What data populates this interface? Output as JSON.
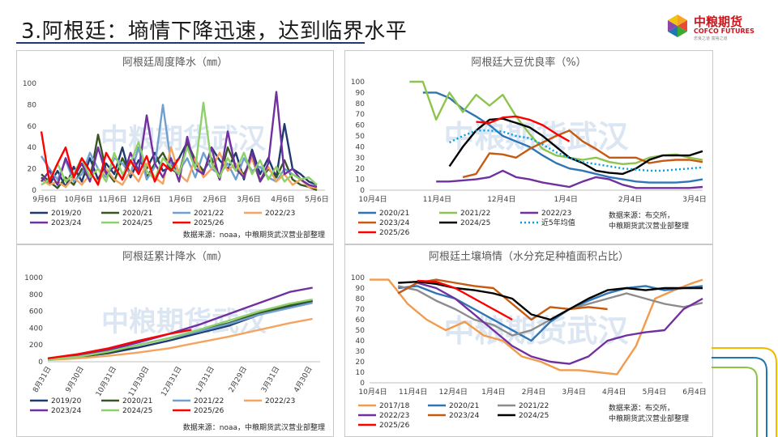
{
  "page": {
    "title": "3.阿根廷：墒情下降迅速，达到临界水平",
    "logo": {
      "cn": "中粮期货",
      "en": "COFCO FUTURES",
      "tagline": "忠良之道 富裕之道"
    },
    "watermark": "中粮期货武汉"
  },
  "colors": {
    "y2017": "#f39a4b",
    "y2019": "#1f3a6e",
    "y2020": "#2e75b6",
    "y2020b": "#375623",
    "y2021": "#8dc44e",
    "y2021b": "#70a0d0",
    "y2022": "#f4a460",
    "y2022b": "#7030a0",
    "y2023": "#7030a0",
    "y2023b": "#c55a11",
    "y2024": "#8ed16b",
    "y2024b": "#000000",
    "y2025": "#ff0000",
    "avg": "#00a0e0"
  },
  "chart_data": [
    {
      "id": "weekly",
      "type": "line",
      "title": "阿根廷周度降水（㎜）",
      "source": "数据来源：noaa，中粮期货武汉营业部整理",
      "ylim": [
        0,
        100
      ],
      "yticks": [
        "0",
        "20",
        "40",
        "60",
        "80",
        "100"
      ],
      "xticks": [
        "9月6日",
        "10月6日",
        "11月6日",
        "12月6日",
        "1月6日",
        "2月6日",
        "3月6日",
        "4月6日",
        "5月6日"
      ],
      "x_range": [
        0,
        35
      ],
      "series": [
        {
          "name": "2019/20",
          "color": "#1f3a6e",
          "values": [
            12,
            5,
            18,
            3,
            22,
            8,
            30,
            10,
            25,
            15,
            40,
            12,
            28,
            20,
            35,
            18,
            22,
            30,
            45,
            25,
            15,
            40,
            28,
            20,
            35,
            10,
            38,
            15,
            30,
            12,
            62,
            20,
            15,
            8,
            5
          ]
        },
        {
          "name": "2020/21",
          "color": "#375623",
          "values": [
            15,
            8,
            2,
            12,
            5,
            20,
            10,
            52,
            18,
            8,
            30,
            15,
            40,
            12,
            25,
            35,
            20,
            15,
            45,
            28,
            18,
            30,
            10,
            40,
            22,
            15,
            30,
            8,
            20,
            12,
            28,
            10,
            5,
            3,
            0
          ]
        },
        {
          "name": "2021/22",
          "color": "#70a0d0",
          "values": [
            32,
            20,
            10,
            28,
            8,
            15,
            35,
            20,
            12,
            30,
            25,
            15,
            40,
            10,
            22,
            80,
            25,
            18,
            30,
            12,
            35,
            20,
            15,
            25,
            10,
            30,
            18,
            22,
            12,
            8,
            20,
            15,
            10,
            5,
            3
          ]
        },
        {
          "name": "2022/23",
          "color": "#f4a460",
          "values": [
            10,
            5,
            8,
            3,
            12,
            5,
            15,
            8,
            20,
            10,
            5,
            18,
            8,
            25,
            12,
            6,
            40,
            15,
            8,
            30,
            12,
            20,
            35,
            18,
            25,
            12,
            30,
            10,
            22,
            8,
            15,
            5,
            10,
            3,
            2
          ]
        },
        {
          "name": "2023/24",
          "color": "#7030a0",
          "values": [
            8,
            18,
            5,
            30,
            12,
            25,
            8,
            40,
            15,
            22,
            10,
            35,
            18,
            70,
            25,
            12,
            30,
            8,
            50,
            20,
            15,
            40,
            10,
            55,
            20,
            12,
            35,
            8,
            25,
            92,
            15,
            20,
            10,
            5,
            3
          ]
        },
        {
          "name": "2024/25",
          "color": "#8ed16b",
          "values": [
            5,
            10,
            25,
            8,
            15,
            30,
            12,
            20,
            8,
            35,
            15,
            25,
            45,
            18,
            10,
            30,
            22,
            15,
            40,
            20,
            82,
            25,
            12,
            30,
            18,
            35,
            15,
            28,
            10,
            22,
            8,
            15,
            10,
            12,
            5
          ]
        },
        {
          "name": "2025/26",
          "color": "#ff0000",
          "values": [
            55,
            8,
            25,
            40,
            12,
            30,
            18,
            5,
            35,
            22,
            10,
            28,
            15,
            32,
            8,
            25,
            18,
            30
          ]
        }
      ]
    },
    {
      "id": "soy-gte",
      "type": "line",
      "title": "阿根廷大豆优良率（%）",
      "source": "数据来源：布交所，中粮期货武汉营业部整理",
      "ylim": [
        0,
        100
      ],
      "yticks": [
        "0",
        "10",
        "20",
        "30",
        "40",
        "50",
        "60",
        "70",
        "80",
        "90",
        "100"
      ],
      "xticks": [
        "10月4日",
        "11月4日",
        "12月4日",
        "1月4日",
        "2月4日",
        "3月4日"
      ],
      "x_range": [
        0,
        25
      ],
      "series": [
        {
          "name": "2020/21",
          "color": "#2e75b6",
          "x": [
            4,
            5,
            6,
            7,
            8,
            9,
            10,
            11,
            12,
            13,
            14,
            15,
            16,
            17,
            18,
            19,
            20,
            21,
            22,
            23,
            24,
            25
          ],
          "values": [
            90,
            90,
            85,
            75,
            68,
            60,
            50,
            45,
            40,
            32,
            25,
            20,
            18,
            15,
            12,
            10,
            8,
            7,
            7,
            7,
            8,
            10
          ]
        },
        {
          "name": "2021/22",
          "color": "#8dc44e",
          "x": [
            3,
            4,
            5,
            6,
            7,
            8,
            9,
            10,
            11,
            12,
            13,
            14,
            15,
            16,
            17,
            18,
            19,
            20,
            21,
            22,
            23,
            24,
            25
          ],
          "values": [
            100,
            100,
            65,
            90,
            72,
            88,
            78,
            88,
            68,
            52,
            38,
            32,
            30,
            28,
            30,
            26,
            24,
            25,
            30,
            32,
            33,
            30,
            28
          ]
        },
        {
          "name": "2022/23",
          "color": "#7030a0",
          "x": [
            5,
            6,
            7,
            8,
            9,
            10,
            11,
            12,
            13,
            14,
            15,
            16,
            17,
            18,
            19,
            20,
            21,
            22,
            23,
            24,
            25
          ],
          "values": [
            8,
            8,
            9,
            10,
            12,
            18,
            12,
            10,
            7,
            5,
            3,
            8,
            12,
            10,
            5,
            2,
            2,
            2,
            2,
            2,
            3
          ]
        },
        {
          "name": "2023/24",
          "color": "#c55a11",
          "x": [
            7,
            8,
            9,
            10,
            11,
            12,
            13,
            14,
            15,
            16,
            17,
            18,
            19,
            20,
            21,
            22,
            23,
            24,
            25
          ],
          "values": [
            12,
            15,
            34,
            33,
            30,
            38,
            44,
            50,
            55,
            45,
            38,
            30,
            30,
            30,
            25,
            27,
            28,
            28,
            26
          ]
        },
        {
          "name": "2024/25",
          "color": "#000000",
          "x": [
            6,
            7,
            8,
            9,
            10,
            11,
            12,
            13,
            14,
            15,
            16,
            17,
            18,
            19,
            20,
            21,
            22,
            23,
            24,
            25
          ],
          "values": [
            22,
            40,
            55,
            65,
            66,
            62,
            58,
            50,
            40,
            30,
            25,
            18,
            16,
            15,
            20,
            28,
            32,
            32,
            32,
            36
          ]
        },
        {
          "name": "近5年均值",
          "color": "#00a0e0",
          "dashed": true,
          "x": [
            6,
            7,
            8,
            9,
            10,
            11,
            12,
            13,
            14,
            15,
            16,
            17,
            18,
            19,
            20,
            21,
            22,
            23,
            24,
            25
          ],
          "values": [
            44,
            50,
            55,
            55,
            54,
            50,
            48,
            42,
            35,
            30,
            26,
            24,
            22,
            20,
            19,
            18,
            18,
            19,
            20,
            21
          ]
        },
        {
          "name": "2025/26",
          "color": "#ff0000",
          "x": [
            8,
            9,
            10,
            11,
            12,
            13,
            14,
            15
          ],
          "values": [
            63,
            62,
            67,
            68,
            65,
            60,
            52,
            45
          ]
        }
      ]
    },
    {
      "id": "cumulative",
      "type": "line",
      "title": "阿根廷累计降水（㎜）",
      "source": "数据来源：noaa，中粮期货武汉营业部整理",
      "ylim": [
        0,
        1000
      ],
      "yticks": [
        "0",
        "200",
        "400",
        "600",
        "800",
        "1000"
      ],
      "xticks": [
        "8月31日",
        "9月30日",
        "10月31日",
        "11月30日",
        "12月31日",
        "1月31日",
        "2月29日",
        "3月31日",
        "4月30日"
      ],
      "x_range": [
        0,
        36
      ],
      "series": [
        {
          "name": "2019/20",
          "color": "#1f3a6e",
          "x": [
            0,
            4,
            8,
            12,
            16,
            20,
            24,
            28,
            32,
            35
          ],
          "values": [
            30,
            60,
            100,
            170,
            250,
            340,
            430,
            560,
            660,
            720
          ]
        },
        {
          "name": "2020/21",
          "color": "#375623",
          "x": [
            0,
            4,
            8,
            12,
            16,
            20,
            24,
            28,
            32,
            35
          ],
          "values": [
            25,
            50,
            110,
            200,
            280,
            370,
            460,
            580,
            670,
            730
          ]
        },
        {
          "name": "2021/22",
          "color": "#70a0d0",
          "x": [
            0,
            4,
            8,
            12,
            16,
            20,
            24,
            28,
            32,
            35
          ],
          "values": [
            40,
            80,
            130,
            200,
            280,
            360,
            450,
            560,
            640,
            700
          ]
        },
        {
          "name": "2022/23",
          "color": "#f4a460",
          "x": [
            0,
            4,
            8,
            12,
            16,
            20,
            24,
            28,
            32,
            35
          ],
          "values": [
            20,
            40,
            70,
            110,
            160,
            230,
            300,
            380,
            460,
            510
          ]
        },
        {
          "name": "2023/24",
          "color": "#7030a0",
          "x": [
            0,
            4,
            8,
            12,
            16,
            20,
            24,
            28,
            32,
            35
          ],
          "values": [
            30,
            70,
            140,
            230,
            330,
            440,
            570,
            700,
            830,
            880
          ]
        },
        {
          "name": "2024/25",
          "color": "#8ed16b",
          "x": [
            0,
            4,
            8,
            12,
            16,
            20,
            24,
            28,
            32,
            35
          ],
          "values": [
            25,
            60,
            120,
            200,
            280,
            380,
            490,
            600,
            690,
            740
          ]
        },
        {
          "name": "2025/26",
          "color": "#ff0000",
          "x": [
            0,
            4,
            8,
            12,
            16,
            19
          ],
          "values": [
            40,
            90,
            160,
            250,
            330,
            380
          ]
        }
      ]
    },
    {
      "id": "soil",
      "type": "line",
      "title": "阿根廷土壤墒情（水分充足种植面积占比）",
      "source": "数据来源：布交所，中粮期货武汉营业部整理",
      "ylim": [
        0,
        100
      ],
      "yticks": [
        "0",
        "10",
        "20",
        "30",
        "40",
        "50",
        "60",
        "70",
        "80",
        "90",
        "100"
      ],
      "xticks": [
        "10月4日",
        "11月4日",
        "12月4日",
        "1月4日",
        "2月4日",
        "3月4日",
        "4月4日",
        "5月4日",
        "6月4日"
      ],
      "x_range": [
        0,
        35
      ],
      "series": [
        {
          "name": "2017/18",
          "color": "#f39a4b",
          "x": [
            0,
            2,
            4,
            6,
            8,
            10,
            12,
            14,
            16,
            18,
            20,
            22,
            24,
            26,
            28,
            30,
            32,
            34,
            35
          ],
          "values": [
            98,
            98,
            75,
            60,
            50,
            58,
            45,
            40,
            25,
            20,
            12,
            12,
            10,
            8,
            35,
            80,
            88,
            95,
            98
          ]
        },
        {
          "name": "2020/21",
          "color": "#2e75b6",
          "x": [
            3,
            5,
            7,
            9,
            11,
            13,
            15,
            17,
            19,
            21,
            23,
            25,
            27,
            29,
            31,
            33,
            35
          ],
          "values": [
            90,
            92,
            85,
            80,
            70,
            60,
            50,
            40,
            58,
            70,
            78,
            85,
            90,
            92,
            88,
            90,
            92
          ]
        },
        {
          "name": "2021/22",
          "color": "#8c8c8c",
          "x": [
            3,
            5,
            7,
            9,
            11,
            13,
            15,
            17,
            19,
            21,
            23,
            25,
            27,
            29,
            31,
            33,
            35
          ],
          "values": [
            92,
            88,
            78,
            70,
            60,
            55,
            45,
            50,
            60,
            70,
            75,
            80,
            85,
            80,
            75,
            72,
            76
          ]
        },
        {
          "name": "2022/23",
          "color": "#7030a0",
          "x": [
            3,
            5,
            7,
            9,
            11,
            13,
            15,
            17,
            19,
            21,
            23,
            25,
            27,
            29,
            31,
            33,
            35
          ],
          "values": [
            85,
            95,
            90,
            80,
            65,
            50,
            35,
            25,
            20,
            18,
            25,
            40,
            45,
            48,
            50,
            70,
            80
          ]
        },
        {
          "name": "2023/24",
          "color": "#c55a11",
          "x": [
            3,
            5,
            7,
            9,
            11,
            13,
            15,
            17,
            19,
            21,
            23,
            25
          ],
          "values": [
            85,
            95,
            98,
            95,
            92,
            90,
            75,
            60,
            72,
            70,
            72,
            70
          ]
        },
        {
          "name": "2024/25",
          "color": "#000000",
          "x": [
            3,
            5,
            7,
            9,
            11,
            13,
            15,
            17,
            19,
            21,
            23,
            25,
            27,
            29,
            31,
            33,
            35
          ],
          "values": [
            95,
            96,
            94,
            90,
            88,
            85,
            80,
            65,
            60,
            70,
            80,
            88,
            90,
            88,
            90,
            90,
            90
          ]
        },
        {
          "name": "2025/26",
          "color": "#ff0000",
          "x": [
            5,
            7,
            9,
            11,
            13,
            15
          ],
          "values": [
            97,
            96,
            90,
            80,
            70,
            60
          ]
        }
      ]
    }
  ]
}
